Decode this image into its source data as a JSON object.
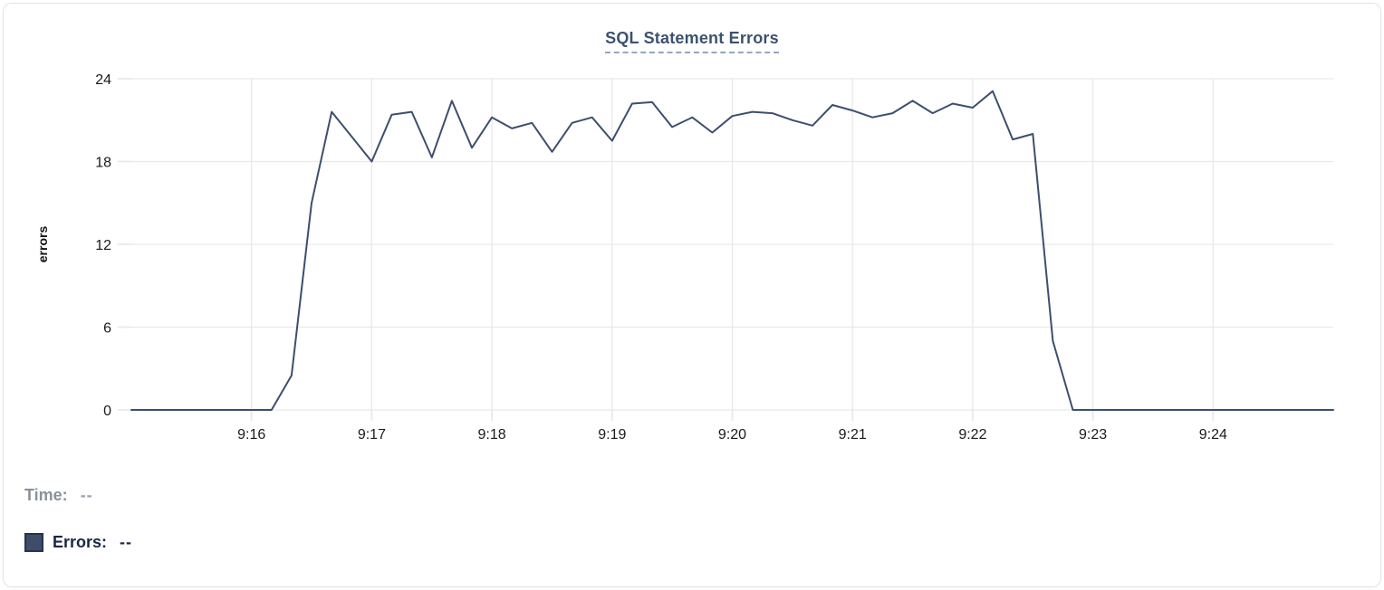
{
  "header": {
    "title": "SQL Statement Errors"
  },
  "chart_data": {
    "type": "line",
    "title": "SQL Statement Errors",
    "xlabel": "",
    "ylabel": "errors",
    "ylim": [
      0,
      24
    ],
    "y_ticks": [
      0,
      6,
      12,
      18,
      24
    ],
    "x_domain": [
      "9:15:00",
      "9:25:00"
    ],
    "x_ticks": [
      "9:16",
      "9:17",
      "9:18",
      "9:19",
      "9:20",
      "9:21",
      "9:22",
      "9:23",
      "9:24"
    ],
    "grid": true,
    "legend_position": "bottom-left",
    "x": [
      "9:15:00",
      "9:15:10",
      "9:15:20",
      "9:15:30",
      "9:15:40",
      "9:15:50",
      "9:16:00",
      "9:16:10",
      "9:16:20",
      "9:16:30",
      "9:16:40",
      "9:16:50",
      "9:17:00",
      "9:17:10",
      "9:17:20",
      "9:17:30",
      "9:17:40",
      "9:17:50",
      "9:18:00",
      "9:18:10",
      "9:18:20",
      "9:18:30",
      "9:18:40",
      "9:18:50",
      "9:19:00",
      "9:19:10",
      "9:19:20",
      "9:19:30",
      "9:19:40",
      "9:19:50",
      "9:20:00",
      "9:20:10",
      "9:20:20",
      "9:20:30",
      "9:20:40",
      "9:20:50",
      "9:21:00",
      "9:21:10",
      "9:21:20",
      "9:21:30",
      "9:21:40",
      "9:21:50",
      "9:22:00",
      "9:22:10",
      "9:22:20",
      "9:22:30",
      "9:22:40",
      "9:22:50",
      "9:23:00",
      "9:23:10",
      "9:23:20",
      "9:23:30",
      "9:23:40",
      "9:23:50",
      "9:24:00",
      "9:24:10",
      "9:24:20",
      "9:24:30",
      "9:24:40",
      "9:24:50",
      "9:25:00"
    ],
    "series": [
      {
        "name": "Errors",
        "color": "#3e4e6e",
        "values": [
          0,
          0,
          0,
          0,
          0,
          0,
          0,
          0,
          2.5,
          15,
          21.6,
          19.8,
          18,
          21.4,
          21.6,
          18.3,
          22.4,
          19,
          21.2,
          20.4,
          20.8,
          18.7,
          20.8,
          21.2,
          19.5,
          22.2,
          22.3,
          20.5,
          21.2,
          20.1,
          21.3,
          21.6,
          21.5,
          21,
          20.6,
          22.1,
          21.7,
          21.2,
          21.5,
          22.4,
          21.5,
          22.2,
          21.9,
          23.1,
          19.6,
          20,
          5,
          0,
          0,
          0,
          0,
          0,
          0,
          0,
          0,
          0,
          0,
          0,
          0,
          0,
          0
        ]
      }
    ],
    "colors": {
      "grid": "#e8e9eb",
      "tick_label": "#1a1a1a"
    }
  },
  "readout": {
    "time_label": "Time:",
    "time_value": "--",
    "errors_label": "Errors:",
    "errors_value": "--",
    "swatch_color": "#3e4d68",
    "swatch_border_color": "#24344f"
  },
  "colors": {
    "title": "#3c526e",
    "title_underline": "#96a5c0",
    "card_border": "#e2e4e8",
    "time_text": "#8b9199",
    "errors_text": "#1a2647"
  }
}
